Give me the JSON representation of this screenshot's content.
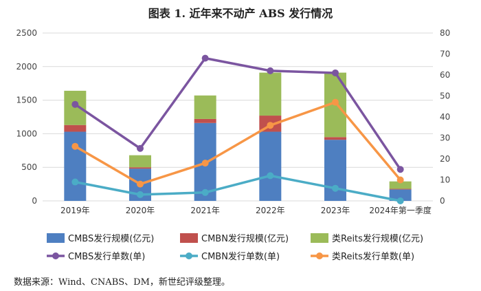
{
  "title": "图表 1.  近年来不动产 ABS 发行情况",
  "source": "数据来源：Wind、CNABS、DM，新世纪评级整理。",
  "colors": {
    "cmbs_bar": "#4e7fc1",
    "cmbn_bar": "#c0504d",
    "reits_bar": "#9bbb59",
    "cmbs_line": "#7b55a0",
    "cmbn_line": "#4bacc6",
    "reits_line": "#f79646"
  },
  "chart_data": {
    "type": "bar",
    "categories": [
      "2019年",
      "2020年",
      "2021年",
      "2022年",
      "2023年",
      "2024年第一季度"
    ],
    "bar_series": [
      {
        "name": "CMBS发行规模(亿元)",
        "values": [
          1030,
          480,
          1160,
          1030,
          910,
          170
        ]
      },
      {
        "name": "CMBN发行规模(亿元)",
        "values": [
          100,
          20,
          60,
          240,
          40,
          10
        ]
      },
      {
        "name": "类Reits发行规模(亿元)",
        "values": [
          510,
          180,
          350,
          640,
          960,
          110
        ]
      }
    ],
    "line_series": [
      {
        "name": "CMBS发行单数(单)",
        "values": [
          46,
          25,
          68,
          62,
          61,
          15
        ]
      },
      {
        "name": "CMBN发行单数(单)",
        "values": [
          9,
          3,
          4,
          12,
          6,
          0
        ]
      },
      {
        "name": "类Reits发行单数(单)",
        "values": [
          26,
          8,
          18,
          36,
          47,
          10
        ]
      }
    ],
    "y_left": {
      "ylim": [
        0,
        2500
      ],
      "ticks": [
        0,
        500,
        1000,
        1500,
        2000,
        2500
      ]
    },
    "y_right": {
      "ylim": [
        0,
        80
      ],
      "ticks": [
        0,
        10,
        20,
        30,
        40,
        50,
        60,
        70,
        80
      ]
    },
    "stacked": true,
    "grid": true,
    "legend": "bottom"
  }
}
